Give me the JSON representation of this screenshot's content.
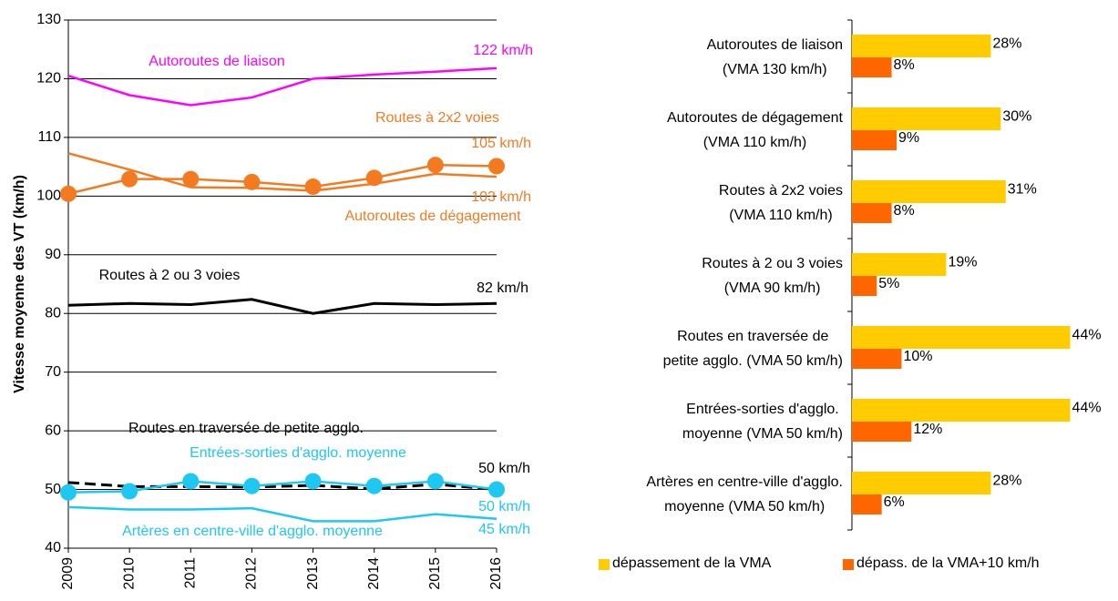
{
  "chart_data": [
    {
      "type": "line",
      "y_label": "Vitesse moyenne des VT (km/h)",
      "categories": [
        "2009",
        "2010",
        "2011",
        "2012",
        "2013",
        "2014",
        "2015",
        "2016"
      ],
      "ylim": [
        40,
        130
      ],
      "yticks": [
        40,
        50,
        60,
        70,
        80,
        90,
        100,
        110,
        120,
        130
      ],
      "grid": true,
      "series": [
        {
          "name": "Autoroutes de liaison",
          "color": "#ff00ff",
          "values": [
            120.5,
            117.2,
            115.5,
            116.8,
            120.0,
            120.7,
            121.2,
            121.8
          ],
          "value_labels": [
            null,
            null,
            null,
            null,
            null,
            null,
            null,
            "122 km/h"
          ]
        },
        {
          "name": "Routes à 2x2 voies",
          "color": "#f47a20",
          "markers": true,
          "values": [
            100.4,
            102.9,
            102.9,
            102.4,
            101.6,
            103.1,
            105.3,
            105.1
          ],
          "value_labels": [
            null,
            null,
            null,
            null,
            null,
            null,
            null,
            "105 km/h"
          ]
        },
        {
          "name": "Autoroutes de dégagement",
          "color": "#f47a20",
          "values": [
            107.3,
            104.5,
            101.5,
            101.4,
            100.9,
            102.1,
            103.8,
            103.3
          ],
          "value_labels": [
            null,
            null,
            null,
            null,
            null,
            null,
            null,
            "103 km/h"
          ]
        },
        {
          "name": "Routes à 2 ou 3 voies",
          "color": "#000000",
          "values": [
            81.4,
            81.7,
            81.5,
            82.4,
            80.0,
            81.7,
            81.5,
            81.7
          ],
          "value_labels": [
            null,
            null,
            null,
            null,
            null,
            null,
            null,
            "82 km/h"
          ]
        },
        {
          "name": "Routes en traversée de petite agglo.",
          "color": "#000000",
          "dashed": true,
          "values": [
            51.2,
            50.5,
            50.5,
            50.4,
            50.7,
            50.1,
            50.9,
            50.0
          ],
          "value_labels": [
            null,
            null,
            null,
            null,
            null,
            null,
            null,
            "50 km/h"
          ]
        },
        {
          "name": "Entrées-sorties d'agglo. moyenne",
          "color": "#1ec8f0",
          "markers": true,
          "values": [
            49.5,
            49.7,
            51.4,
            50.6,
            51.4,
            50.6,
            51.4,
            50.0
          ],
          "value_labels": [
            null,
            null,
            null,
            null,
            null,
            null,
            null,
            "50 km/h"
          ]
        },
        {
          "name": "Artères en centre-ville d'agglo. moyenne",
          "color": "#1ec8f0",
          "values": [
            47.0,
            46.6,
            46.6,
            46.8,
            44.6,
            44.6,
            45.8,
            45.0
          ],
          "value_labels": [
            null,
            null,
            null,
            null,
            null,
            null,
            null,
            "45 km/h"
          ]
        }
      ]
    },
    {
      "type": "hbar",
      "categories": [
        [
          "Autoroutes de liaison",
          "(VMA 130 km/h)"
        ],
        [
          "Autoroutes de dégagement",
          "(VMA 110 km/h)"
        ],
        [
          "Routes à 2x2 voies",
          "(VMA 110 km/h)"
        ],
        [
          "Routes à 2 ou 3 voies",
          "(VMA 90 km/h)"
        ],
        [
          "Routes en traversée de",
          "petite agglo. (VMA 50 km/h)"
        ],
        [
          "Entrées-sorties d'agglo.",
          "moyenne (VMA 50 km/h)"
        ],
        [
          "Artères en centre-ville d'agglo.",
          "moyenne (VMA 50 km/h)"
        ]
      ],
      "xlim": [
        0,
        45
      ],
      "legend": "bottom",
      "series": [
        {
          "name": "dépassement de la VMA",
          "color": "#ffcc00",
          "values": [
            28,
            30,
            31,
            19,
            44,
            44,
            28
          ],
          "value_labels": [
            "28%",
            "30%",
            "31%",
            "19%",
            "44%",
            "44%",
            "28%"
          ]
        },
        {
          "name": "dépass. de la VMA+10 km/h",
          "color": "#ff6600",
          "values": [
            8,
            9,
            8,
            5,
            10,
            12,
            6
          ],
          "value_labels": [
            "8%",
            "9%",
            "8%",
            "5%",
            "10%",
            "12%",
            "6%"
          ]
        }
      ]
    }
  ]
}
